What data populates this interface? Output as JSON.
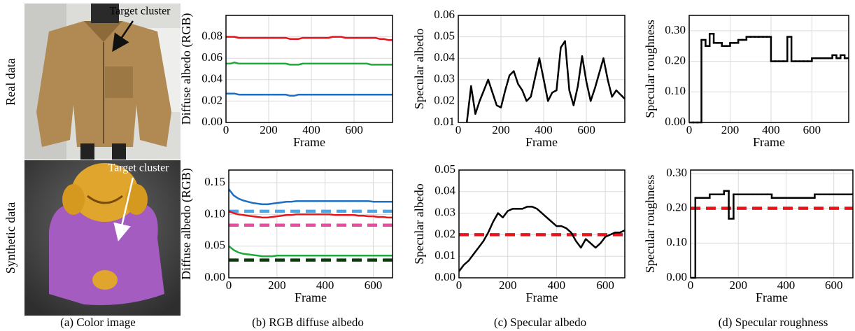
{
  "figure": {
    "row_labels": [
      "Real data",
      "Synthetic data"
    ],
    "annotations": [
      "Target cluster",
      "Target cluster"
    ],
    "captions": [
      "(a) Color image",
      "(b) RGB diffuse albedo",
      "(c) Specular albedo",
      "(d) Specular roughness"
    ]
  },
  "chart_data": [
    {
      "type": "line",
      "ylabel": "Diffuse albedo (RGB)",
      "xlabel": "Frame",
      "grid": true,
      "xlim": [
        0,
        780
      ],
      "xticks": [
        0,
        200,
        400,
        600
      ],
      "ylim": [
        0,
        0.1
      ],
      "yticks": [
        {
          "value": 0,
          "label": "0.00"
        },
        0.02,
        0.04,
        0.06,
        0.08
      ],
      "x": [
        0,
        20,
        40,
        60,
        80,
        100,
        120,
        140,
        160,
        180,
        200,
        220,
        240,
        260,
        280,
        300,
        320,
        340,
        360,
        380,
        400,
        420,
        440,
        460,
        480,
        500,
        520,
        540,
        560,
        580,
        600,
        620,
        640,
        660,
        680,
        700,
        720,
        740,
        760,
        780
      ],
      "series": [
        {
          "color": "#e8141b",
          "values": [
            0.08,
            0.08,
            0.08,
            0.079,
            0.079,
            0.079,
            0.079,
            0.079,
            0.079,
            0.079,
            0.079,
            0.079,
            0.079,
            0.079,
            0.079,
            0.078,
            0.078,
            0.078,
            0.079,
            0.079,
            0.079,
            0.079,
            0.079,
            0.079,
            0.079,
            0.08,
            0.08,
            0.08,
            0.079,
            0.079,
            0.079,
            0.079,
            0.079,
            0.079,
            0.079,
            0.079,
            0.078,
            0.078,
            0.077,
            0.077
          ]
        },
        {
          "color": "#1fa93b",
          "values": [
            0.055,
            0.055,
            0.056,
            0.055,
            0.055,
            0.055,
            0.055,
            0.055,
            0.055,
            0.055,
            0.055,
            0.055,
            0.055,
            0.055,
            0.055,
            0.054,
            0.054,
            0.054,
            0.055,
            0.055,
            0.055,
            0.055,
            0.055,
            0.055,
            0.055,
            0.055,
            0.055,
            0.055,
            0.055,
            0.055,
            0.055,
            0.055,
            0.055,
            0.055,
            0.054,
            0.054,
            0.054,
            0.054,
            0.054,
            0.054
          ]
        },
        {
          "color": "#1f6fc0",
          "values": [
            0.027,
            0.027,
            0.027,
            0.026,
            0.026,
            0.026,
            0.026,
            0.026,
            0.026,
            0.026,
            0.026,
            0.026,
            0.026,
            0.026,
            0.026,
            0.025,
            0.025,
            0.026,
            0.026,
            0.026,
            0.026,
            0.026,
            0.026,
            0.026,
            0.026,
            0.026,
            0.026,
            0.026,
            0.026,
            0.026,
            0.026,
            0.026,
            0.026,
            0.026,
            0.026,
            0.026,
            0.026,
            0.026,
            0.026,
            0.026
          ]
        }
      ]
    },
    {
      "type": "line",
      "ylabel": "Specular albedo",
      "xlabel": "Frame",
      "grid": true,
      "xlim": [
        0,
        780
      ],
      "xticks": [
        0,
        200,
        400,
        600
      ],
      "ylim": [
        0.01,
        0.06
      ],
      "yticks": [
        0.01,
        0.02,
        0.03,
        0.04,
        0.05,
        0.06
      ],
      "x": [
        0,
        20,
        40,
        60,
        80,
        100,
        120,
        140,
        160,
        180,
        200,
        220,
        240,
        260,
        280,
        300,
        320,
        340,
        360,
        380,
        400,
        420,
        440,
        460,
        480,
        500,
        520,
        540,
        560,
        580,
        600,
        620,
        640,
        660,
        680,
        700,
        720,
        740,
        760,
        780
      ],
      "series": [
        {
          "color": "#000000",
          "values": [
            null,
            null,
            0.01,
            0.027,
            0.014,
            0.02,
            0.025,
            0.03,
            0.024,
            0.018,
            0.017,
            0.025,
            0.032,
            0.034,
            0.028,
            0.025,
            0.02,
            0.022,
            0.031,
            0.04,
            0.03,
            0.02,
            0.024,
            0.025,
            0.045,
            0.048,
            0.025,
            0.018,
            0.027,
            0.041,
            0.029,
            0.02,
            0.026,
            0.033,
            0.04,
            0.03,
            0.022,
            0.025,
            0.023,
            0.021
          ]
        }
      ]
    },
    {
      "type": "line",
      "step": true,
      "ylabel": "Specular roughness",
      "xlabel": "Frame",
      "grid": true,
      "xlim": [
        0,
        780
      ],
      "xticks": [
        0,
        200,
        400,
        600
      ],
      "ylim": [
        0,
        0.35
      ],
      "yticks": [
        {
          "value": 0,
          "label": "0.00"
        },
        {
          "value": 0.1,
          "label": "0.10"
        },
        {
          "value": 0.2,
          "label": "0.20"
        },
        {
          "value": 0.3,
          "label": "0.30"
        }
      ],
      "x": [
        0,
        20,
        40,
        60,
        80,
        100,
        120,
        140,
        160,
        180,
        200,
        220,
        240,
        260,
        280,
        300,
        320,
        340,
        360,
        380,
        400,
        420,
        440,
        460,
        480,
        500,
        520,
        540,
        560,
        580,
        600,
        620,
        640,
        660,
        680,
        700,
        720,
        740,
        760,
        780
      ],
      "series": [
        {
          "color": "#000000",
          "values": [
            0,
            0,
            0,
            0.27,
            0.25,
            0.29,
            0.26,
            0.26,
            0.25,
            0.25,
            0.26,
            0.26,
            0.27,
            0.27,
            0.28,
            0.28,
            0.28,
            0.28,
            0.28,
            0.28,
            0.2,
            0.2,
            0.2,
            0.2,
            0.28,
            0.2,
            0.2,
            0.2,
            0.2,
            0.2,
            0.21,
            0.21,
            0.21,
            0.21,
            0.21,
            0.22,
            0.21,
            0.22,
            0.21,
            0.21
          ]
        }
      ]
    },
    {
      "type": "line",
      "ylabel": "Diffuse albedo (RGB)",
      "xlabel": "Frame",
      "grid": true,
      "xlim": [
        0,
        680
      ],
      "xticks": [
        0,
        200,
        400,
        600
      ],
      "ylim": [
        0,
        0.17
      ],
      "yticks": [
        {
          "value": 0,
          "label": "0.00"
        },
        0.05,
        {
          "value": 0.1,
          "label": "0.10"
        },
        0.15
      ],
      "x": [
        0,
        20,
        40,
        60,
        80,
        100,
        120,
        140,
        160,
        180,
        200,
        220,
        240,
        260,
        280,
        300,
        320,
        340,
        360,
        380,
        400,
        420,
        440,
        460,
        480,
        500,
        520,
        540,
        560,
        580,
        600,
        620,
        640,
        660,
        680
      ],
      "series": [
        {
          "color": "#1f6fc0",
          "values": [
            0.14,
            0.13,
            0.125,
            0.122,
            0.12,
            0.118,
            0.117,
            0.116,
            0.116,
            0.117,
            0.118,
            0.119,
            0.12,
            0.12,
            0.121,
            0.121,
            0.121,
            0.121,
            0.121,
            0.121,
            0.121,
            0.121,
            0.121,
            0.121,
            0.121,
            0.121,
            0.121,
            0.121,
            0.121,
            0.121,
            0.12,
            0.12,
            0.12,
            0.12,
            0.12
          ]
        },
        {
          "color": "#e8141b",
          "values": [
            0.105,
            0.102,
            0.1,
            0.099,
            0.098,
            0.097,
            0.096,
            0.095,
            0.095,
            0.096,
            0.097,
            0.098,
            0.099,
            0.099,
            0.1,
            0.1,
            0.1,
            0.1,
            0.1,
            0.1,
            0.1,
            0.1,
            0.099,
            0.099,
            0.099,
            0.099,
            0.099,
            0.098,
            0.098,
            0.097,
            0.097,
            0.096,
            0.096,
            0.095,
            0.095
          ]
        },
        {
          "color": "#1fa93b",
          "values": [
            0.05,
            0.044,
            0.04,
            0.038,
            0.037,
            0.036,
            0.035,
            0.034,
            0.034,
            0.034,
            0.035,
            0.035,
            0.035,
            0.035,
            0.035,
            0.035,
            0.035,
            0.035,
            0.035,
            0.035,
            0.035,
            0.035,
            0.035,
            0.035,
            0.035,
            0.035,
            0.035,
            0.035,
            0.035,
            0.035,
            0.035,
            0.035,
            0.035,
            0.035,
            0.035
          ]
        }
      ],
      "hlines": [
        {
          "value": 0.105,
          "color": "#4da6e8"
        },
        {
          "value": 0.083,
          "color": "#e84c9e"
        },
        {
          "value": 0.028,
          "color": "#0b3d0b"
        }
      ]
    },
    {
      "type": "line",
      "ylabel": "Specular albedo",
      "xlabel": "Frame",
      "grid": true,
      "xlim": [
        0,
        680
      ],
      "xticks": [
        0,
        200,
        400,
        600
      ],
      "ylim": [
        0,
        0.05
      ],
      "yticks": [
        {
          "value": 0,
          "label": "0.00"
        },
        0.01,
        0.02,
        0.03,
        0.04,
        0.05
      ],
      "x": [
        0,
        20,
        40,
        60,
        80,
        100,
        120,
        140,
        160,
        180,
        200,
        220,
        240,
        260,
        280,
        300,
        320,
        340,
        360,
        380,
        400,
        420,
        440,
        460,
        480,
        500,
        520,
        540,
        560,
        580,
        600,
        620,
        640,
        660,
        680
      ],
      "series": [
        {
          "color": "#000000",
          "values": [
            0.003,
            0.006,
            0.008,
            0.011,
            0.014,
            0.017,
            0.021,
            0.026,
            0.03,
            0.028,
            0.031,
            0.032,
            0.032,
            0.032,
            0.033,
            0.033,
            0.032,
            0.03,
            0.028,
            0.026,
            0.024,
            0.024,
            0.023,
            0.021,
            0.017,
            0.014,
            0.018,
            0.016,
            0.014,
            0.016,
            0.019,
            0.02,
            0.021,
            0.021,
            0.022
          ]
        }
      ],
      "hlines": [
        {
          "value": 0.02,
          "color": "#e8141b"
        }
      ]
    },
    {
      "type": "line",
      "step": true,
      "ylabel": "Specular roughness",
      "xlabel": "Frame",
      "grid": true,
      "xlim": [
        0,
        680
      ],
      "xticks": [
        0,
        200,
        400,
        600
      ],
      "ylim": [
        0,
        0.31
      ],
      "yticks": [
        {
          "value": 0,
          "label": "0.00"
        },
        {
          "value": 0.1,
          "label": "0.10"
        },
        {
          "value": 0.2,
          "label": "0.20"
        },
        {
          "value": 0.3,
          "label": "0.30"
        }
      ],
      "x": [
        0,
        20,
        40,
        60,
        80,
        100,
        120,
        140,
        160,
        180,
        200,
        220,
        240,
        260,
        280,
        300,
        320,
        340,
        360,
        380,
        400,
        420,
        440,
        460,
        480,
        500,
        520,
        540,
        560,
        580,
        600,
        620,
        640,
        660,
        680
      ],
      "series": [
        {
          "color": "#000000",
          "values": [
            0,
            0.23,
            0.23,
            0.23,
            0.24,
            0.24,
            0.24,
            0.25,
            0.17,
            0.24,
            0.24,
            0.24,
            0.24,
            0.24,
            0.24,
            0.24,
            0.24,
            0.23,
            0.23,
            0.23,
            0.23,
            0.23,
            0.23,
            0.23,
            0.23,
            0.23,
            0.24,
            0.24,
            0.24,
            0.24,
            0.24,
            0.24,
            0.24,
            0.24,
            0.24
          ]
        }
      ],
      "hlines": [
        {
          "value": 0.2,
          "color": "#e8141b"
        }
      ]
    }
  ]
}
